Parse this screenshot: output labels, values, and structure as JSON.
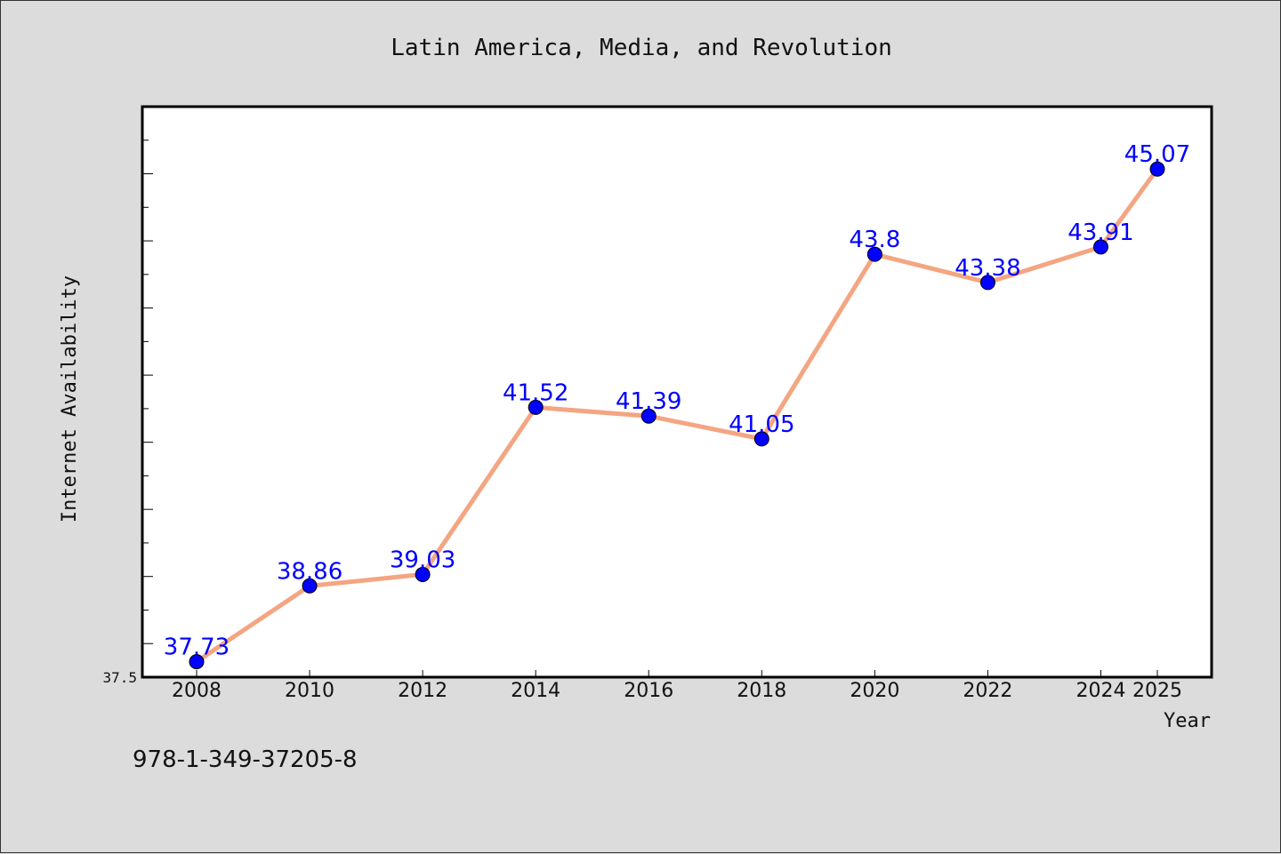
{
  "chart_data": {
    "type": "line",
    "title": "Latin America, Media, and Revolution",
    "xlabel": "Year",
    "ylabel": "Internet Availability",
    "x": [
      "2008",
      "2010",
      "2012",
      "2014",
      "2016",
      "2018",
      "2020",
      "2022",
      "2024",
      "2025"
    ],
    "values": [
      37.73,
      38.86,
      39.03,
      41.52,
      41.39,
      41.05,
      43.8,
      43.38,
      43.91,
      45.07
    ],
    "data_labels": [
      "37.73",
      "38.86",
      "39.03",
      "41.52",
      "41.39",
      "41.05",
      "43.8",
      "43.38",
      "43.91",
      "45.07"
    ],
    "ylim": [
      37.5,
      46.0
    ],
    "yticks_labeled": [
      "37.5"
    ],
    "grid": false,
    "line_color": "#f4a582",
    "marker_color": "#0000ff",
    "label_color": "#0000ff"
  },
  "footer": {
    "isbn": "978-1-349-37205-8"
  }
}
